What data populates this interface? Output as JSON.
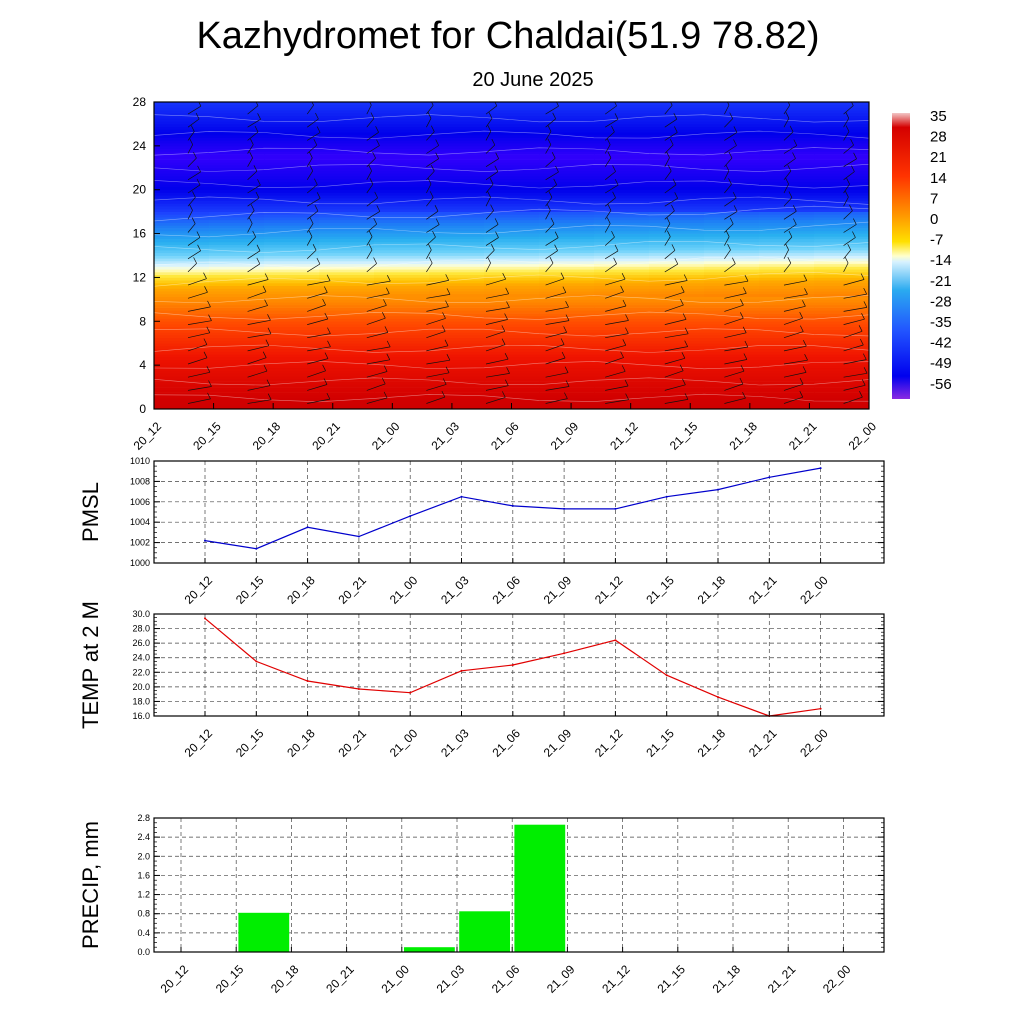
{
  "title": "Kazhydromet for Chaldai(51.9 78.82)",
  "subtitle": "20 June 2025",
  "colors": {
    "pmsl_line": "#0000cc",
    "temp_line": "#e00000",
    "precip_bar": "#00ee00",
    "grid": "#555555"
  },
  "chart_data": [
    {
      "id": "cross-section",
      "type": "heatmap",
      "title": "",
      "x_ticks": [
        "20_12",
        "20_15",
        "20_18",
        "20_21",
        "21_00",
        "21_03",
        "21_06",
        "21_09",
        "21_12",
        "21_15",
        "21_18",
        "21_21",
        "22_00"
      ],
      "y_ticks": [
        0,
        4,
        8,
        12,
        16,
        20,
        24,
        28
      ],
      "ylim": [
        0,
        28
      ],
      "colorbar": {
        "labels": [
          35,
          28,
          21,
          14,
          7,
          0,
          -7,
          -14,
          -21,
          -28,
          -35,
          -42,
          -49,
          -56
        ],
        "range": [
          -63,
          38
        ]
      },
      "temperature_profile": [
        {
          "level": 0,
          "value": 32
        },
        {
          "level": 4,
          "value": 24
        },
        {
          "level": 8,
          "value": 14
        },
        {
          "level": 11,
          "value": 3
        },
        {
          "level": 13,
          "value": -13
        },
        {
          "level": 14,
          "value": -20
        },
        {
          "level": 16,
          "value": -33
        },
        {
          "level": 18,
          "value": -45
        },
        {
          "level": 20,
          "value": -52
        },
        {
          "level": 23,
          "value": -57
        },
        {
          "level": 26,
          "value": -50
        },
        {
          "level": 28,
          "value": -46
        }
      ]
    },
    {
      "id": "pmsl",
      "type": "line",
      "ylabel": "PMSL",
      "categories": [
        "20_12",
        "20_15",
        "20_18",
        "20_21",
        "21_00",
        "21_03",
        "21_06",
        "21_09",
        "21_12",
        "21_15",
        "21_18",
        "21_21",
        "22_00"
      ],
      "values": [
        1002.2,
        1001.4,
        1003.5,
        1002.6,
        1004.6,
        1006.5,
        1005.6,
        1005.3,
        1005.3,
        1006.5,
        1007.2,
        1008.4,
        1009.3
      ],
      "ylim": [
        1000,
        1010
      ],
      "y_ticks": [
        "1000",
        "1002",
        "1004",
        "1006",
        "1008",
        "1010"
      ]
    },
    {
      "id": "temp",
      "type": "line",
      "ylabel": "TEMP at 2 M",
      "categories": [
        "20_12",
        "20_15",
        "20_18",
        "20_21",
        "21_00",
        "21_03",
        "21_06",
        "21_09",
        "21_12",
        "21_15",
        "21_18",
        "21_21",
        "22_00"
      ],
      "values": [
        29.4,
        23.5,
        20.8,
        19.7,
        19.2,
        22.2,
        23.0,
        24.6,
        26.4,
        21.6,
        18.6,
        16.0,
        17.0
      ],
      "ylim": [
        16,
        30
      ],
      "y_ticks": [
        "16.0",
        "18.0",
        "20.0",
        "22.0",
        "24.0",
        "26.0",
        "28.0",
        "30.0"
      ]
    },
    {
      "id": "precip",
      "type": "bar",
      "ylabel": "PRECIP, mm",
      "categories": [
        "20_12",
        "20_15",
        "20_18",
        "20_21",
        "21_00",
        "21_03",
        "21_06",
        "21_09",
        "21_12",
        "21_15",
        "21_18",
        "21_21",
        "22_00"
      ],
      "values": [
        0,
        0,
        0.82,
        0,
        0,
        0.1,
        0.85,
        2.66,
        0,
        0,
        0,
        0,
        0
      ],
      "ylim": [
        0,
        2.8
      ],
      "y_ticks": [
        "0.0",
        "0.4",
        "0.8",
        "1.2",
        "1.6",
        "2.0",
        "2.4",
        "2.8"
      ]
    }
  ]
}
